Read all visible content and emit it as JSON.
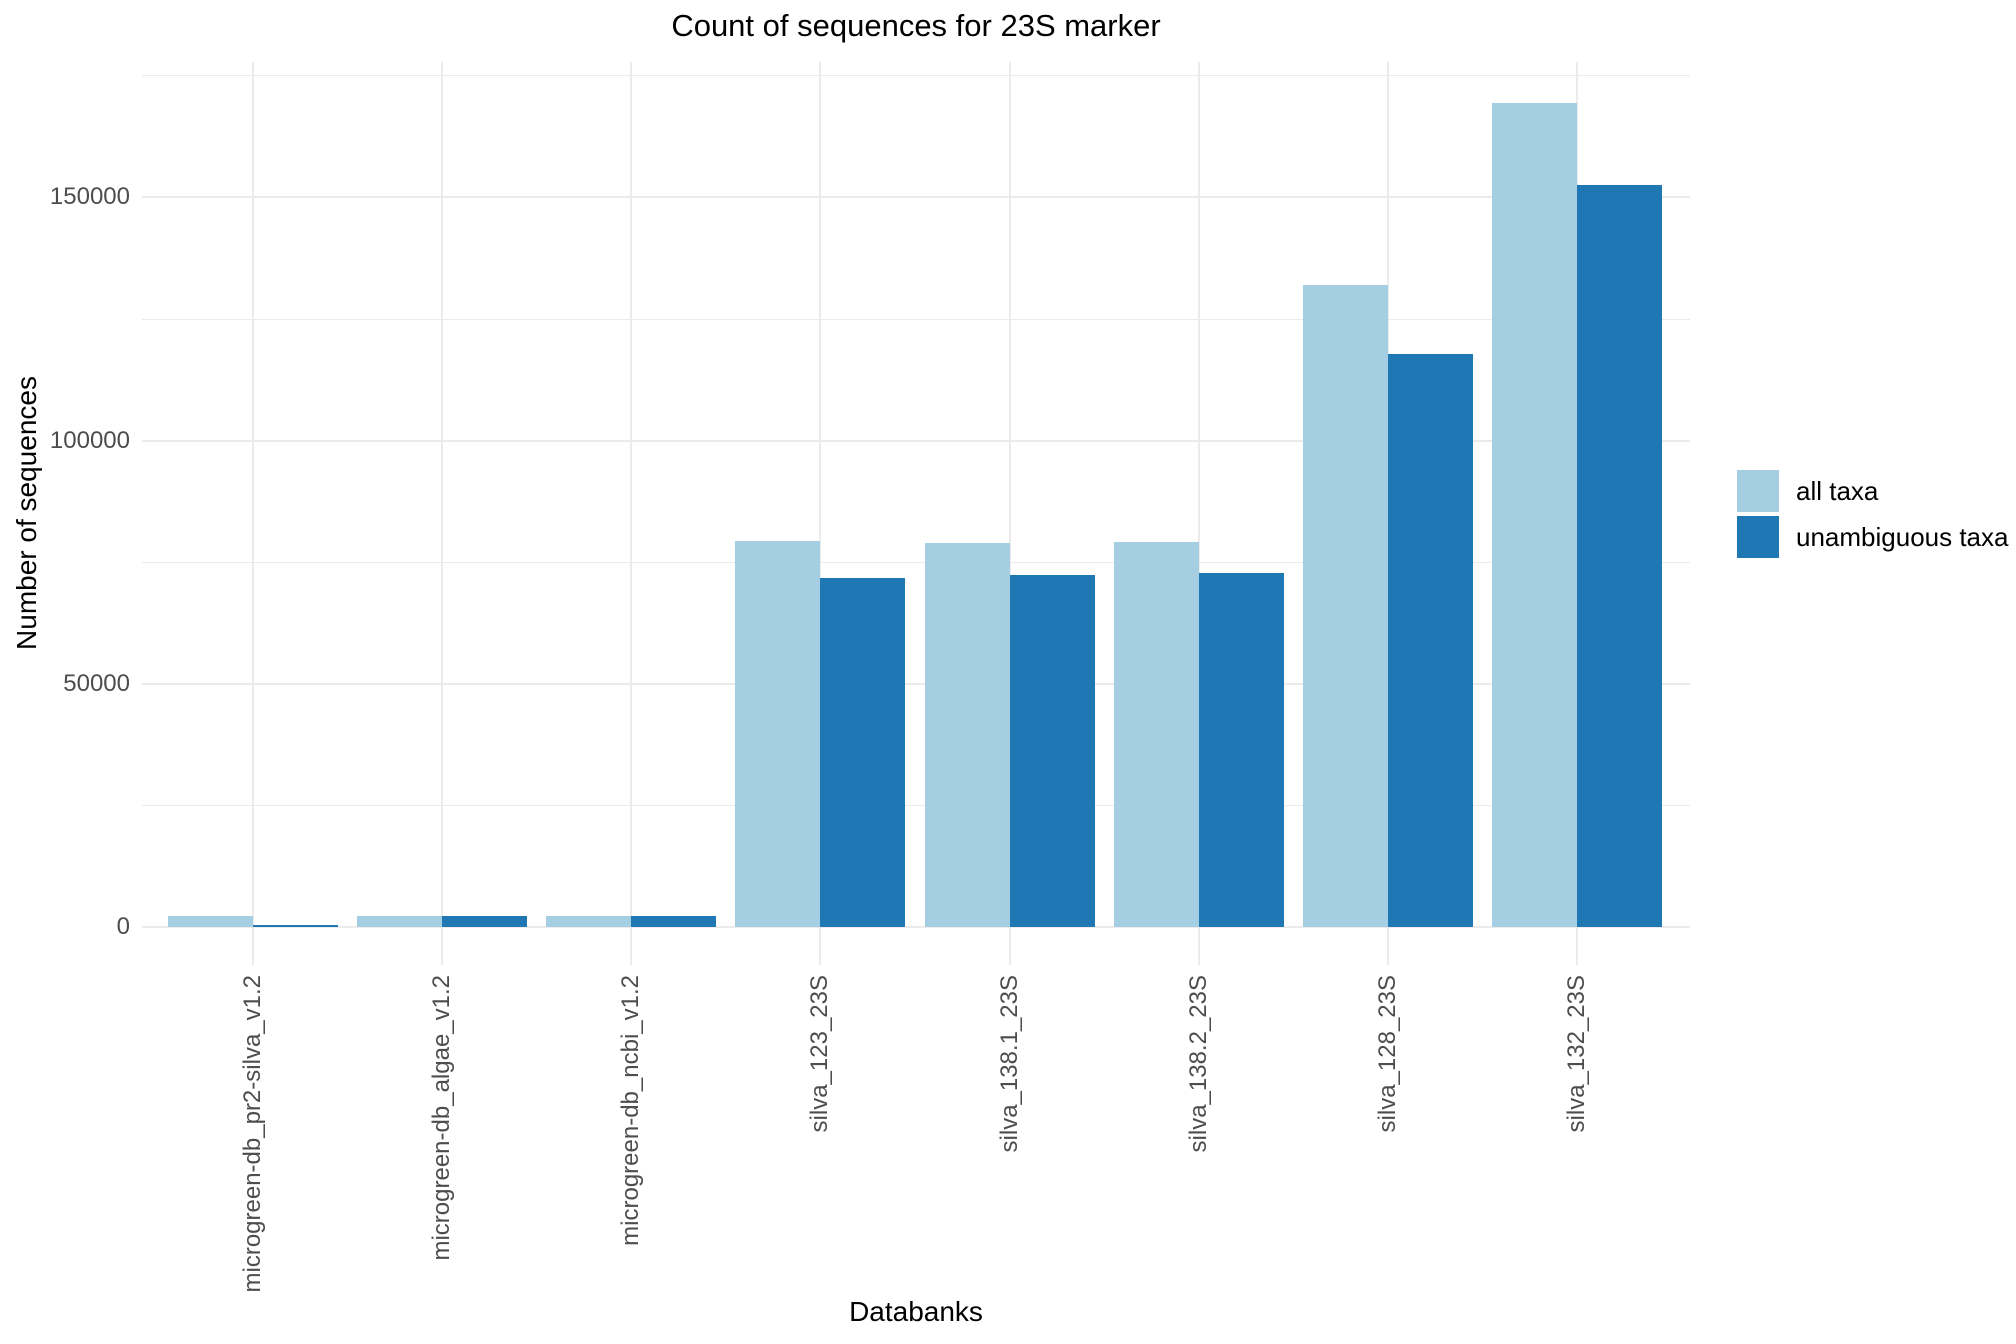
{
  "chart_data": {
    "type": "bar",
    "title": "Count of sequences for 23S marker",
    "xlabel": "Databanks",
    "ylabel": "Number of sequences",
    "categories": [
      "microgreen-db_pr2-silva_v1.2",
      "microgreen-db_algae_v1.2",
      "microgreen-db_ncbi_v1.2",
      "silva_123_23S",
      "silva_138.1_23S",
      "silva_138.2_23S",
      "silva_128_23S",
      "silva_132_23S"
    ],
    "series": [
      {
        "name": "all taxa",
        "color": "#A6CEE3",
        "values": [
          2200,
          2200,
          2200,
          79400,
          79000,
          79200,
          131900,
          169500
        ]
      },
      {
        "name": "unambiguous taxa",
        "color": "#1F78B4",
        "values": [
          100,
          2200,
          2200,
          71800,
          72400,
          72800,
          117900,
          152500
        ]
      }
    ],
    "y_major_ticks": [
      0,
      50000,
      100000,
      150000
    ],
    "y_minor_gridlines": [
      25000,
      75000,
      125000,
      175000
    ],
    "ylim": [
      0,
      178000
    ],
    "grid": true,
    "legend_position": "right",
    "colors": {
      "background": "#FFFFFF",
      "gridline": "#EBEBEB",
      "tick_label": "#4D4D4D",
      "title_text": "#000000"
    }
  }
}
